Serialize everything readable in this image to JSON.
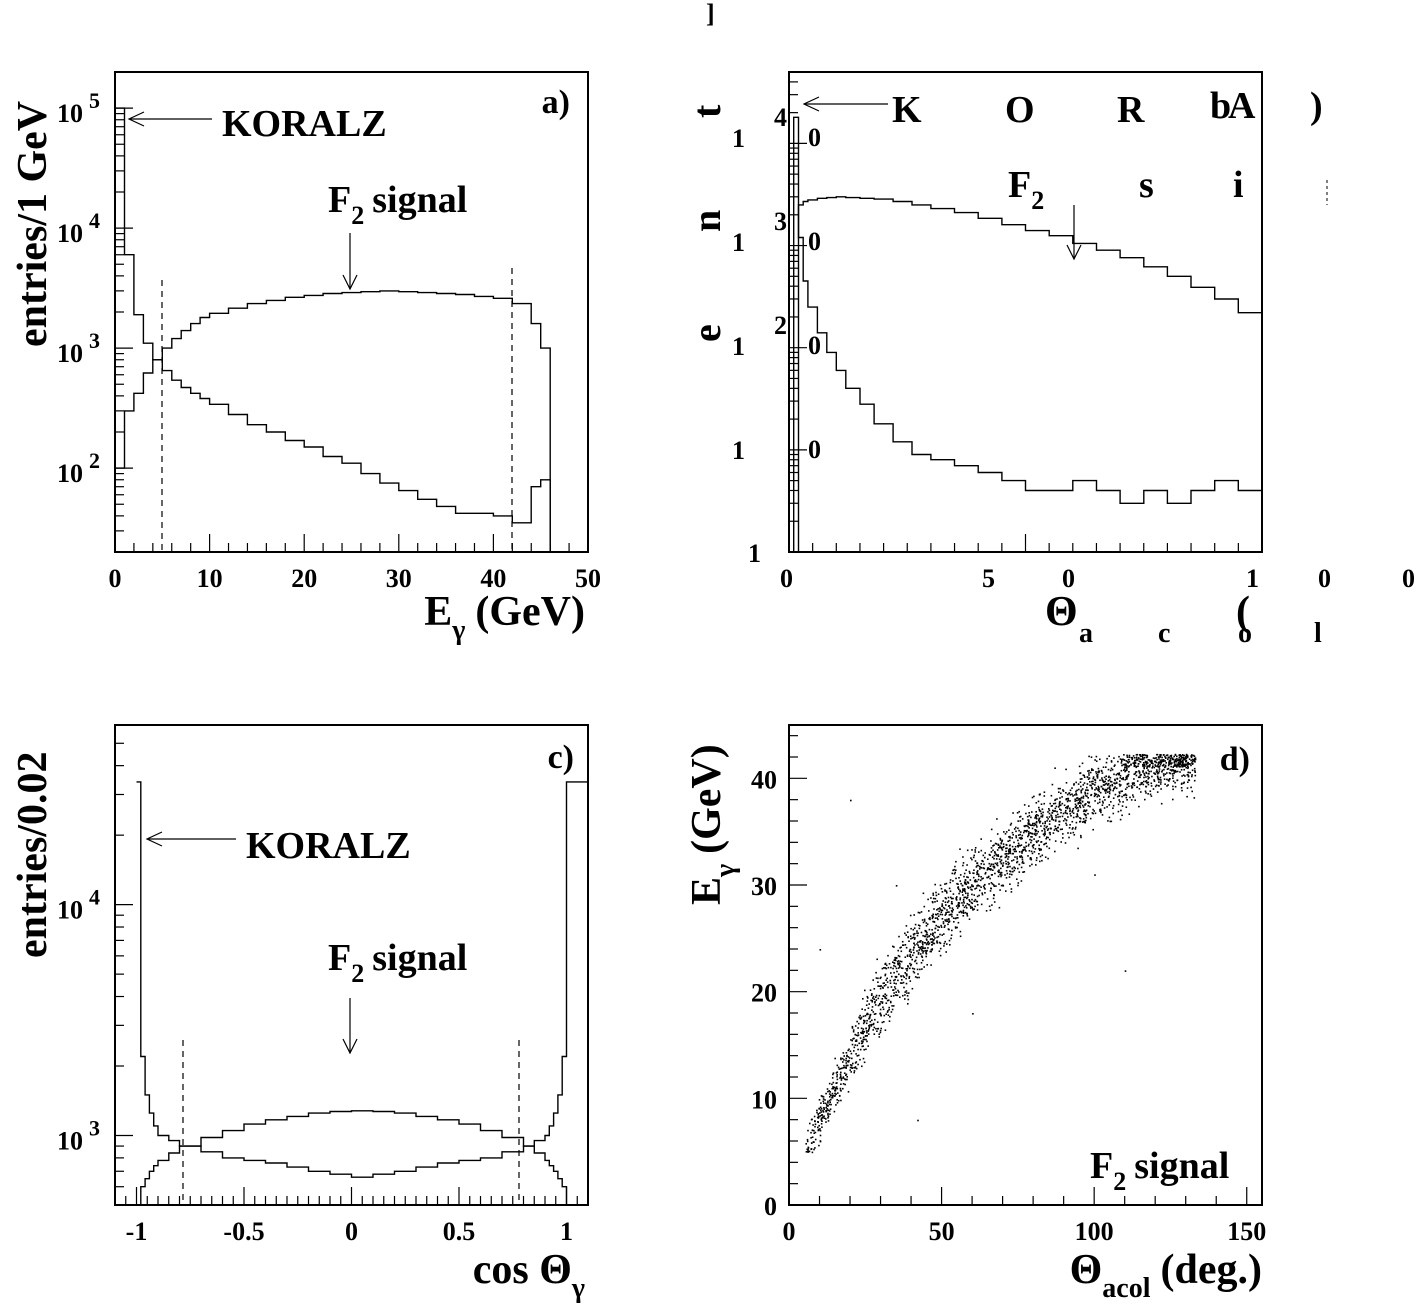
{
  "panels": {
    "a": {
      "panel_label": "a)",
      "ylabel": "entries/1 GeV",
      "xlabel_main": "E",
      "xlabel_sub": "γ",
      "xlabel_unit": "(GeV)",
      "xticks": [
        "0",
        "10",
        "20",
        "30",
        "40",
        "50"
      ],
      "yticks": [
        {
          "base": "10",
          "exp": "2"
        },
        {
          "base": "10",
          "exp": "3"
        },
        {
          "base": "10",
          "exp": "4"
        },
        {
          "base": "10",
          "exp": "5"
        }
      ],
      "koralz_label": "KORALZ",
      "signal_label_main": "F",
      "signal_label_sub": "2",
      "signal_label_rest": "signal"
    },
    "b": {
      "panel_label_1": "b",
      "panel_label_2": ")",
      "stray_A": "A",
      "ylabel_letters": [
        "e",
        "n",
        "t"
      ],
      "xlabel_theta": "Θ",
      "xlabel_letters": [
        "a",
        "c",
        "o",
        "l"
      ],
      "xlabel_paren": "(",
      "xticks": [
        "0",
        "5",
        "0",
        "1",
        "0",
        "0"
      ],
      "ytick_ones": [
        "1",
        "1",
        "1",
        "1",
        "1"
      ],
      "ytick_exps": [
        "4",
        "3",
        "2"
      ],
      "ytick_zeros": [
        "0",
        "0",
        "0",
        "0"
      ],
      "koralz_letters": [
        "K",
        "O",
        "R"
      ],
      "signal_label_main": "F",
      "signal_label_sub": "2",
      "signal_letters": [
        "s",
        "i"
      ],
      "top_mark": "]"
    },
    "c": {
      "panel_label": "c)",
      "ylabel": "entries/0.02",
      "xlabel_main": "cos Θ",
      "xlabel_sub": "γ",
      "xticks": [
        "-1",
        "-0.5",
        "0",
        "0.5",
        "1"
      ],
      "yticks": [
        {
          "base": "10",
          "exp": "3"
        },
        {
          "base": "10",
          "exp": "4"
        }
      ],
      "koralz_label": "KORALZ",
      "signal_label_main": "F",
      "signal_label_sub": "2",
      "signal_label_rest": "signal"
    },
    "d": {
      "panel_label": "d)",
      "ylabel_main": "E",
      "ylabel_sub": "γ",
      "ylabel_unit": "(GeV)",
      "xlabel_main": "Θ",
      "xlabel_sub": "acol",
      "xlabel_unit": "(deg.)",
      "xticks": [
        "0",
        "50",
        "100",
        "150"
      ],
      "yticks": [
        "0",
        "10",
        "20",
        "30",
        "40"
      ],
      "signal_label_main": "F",
      "signal_label_sub": "2",
      "signal_label_rest": "signal"
    }
  },
  "chart_data": [
    {
      "panel": "a",
      "type": "line",
      "log_y": true,
      "xlim": [
        0,
        50
      ],
      "ylim": [
        20,
        200000
      ],
      "cut_lines_x": [
        5,
        42
      ],
      "series": [
        {
          "name": "KORALZ",
          "x": [
            0,
            1,
            2,
            3,
            4,
            5,
            6,
            7,
            8,
            9,
            10,
            12,
            14,
            16,
            18,
            20,
            22,
            24,
            26,
            28,
            30,
            32,
            34,
            36,
            38,
            40,
            42,
            44,
            45,
            46
          ],
          "values": [
            100000,
            6000,
            1900,
            1100,
            800,
            650,
            540,
            470,
            420,
            380,
            340,
            280,
            230,
            200,
            170,
            150,
            125,
            110,
            90,
            75,
            65,
            55,
            48,
            42,
            42,
            40,
            35,
            70,
            80,
            20
          ]
        },
        {
          "name": "F2 signal",
          "x": [
            0,
            1,
            2,
            3,
            4,
            5,
            6,
            7,
            8,
            9,
            10,
            12,
            14,
            16,
            18,
            20,
            22,
            24,
            26,
            28,
            30,
            32,
            34,
            36,
            38,
            40,
            42,
            44,
            45,
            46
          ],
          "values": [
            100,
            300,
            420,
            620,
            800,
            1000,
            1200,
            1400,
            1600,
            1800,
            1950,
            2150,
            2350,
            2500,
            2650,
            2750,
            2850,
            2900,
            2950,
            3000,
            2950,
            2900,
            2850,
            2800,
            2700,
            2600,
            2350,
            1600,
            1000,
            20
          ]
        }
      ]
    },
    {
      "panel": "b",
      "type": "line",
      "log_y": true,
      "xlim": [
        0,
        100
      ],
      "ylim": [
        1,
        50000
      ],
      "series": [
        {
          "name": "KORALZ",
          "x": [
            0,
            1,
            2,
            3,
            4,
            6,
            8,
            10,
            12,
            15,
            18,
            22,
            26,
            30,
            35,
            40,
            45,
            50,
            55,
            60,
            65,
            70,
            75,
            80,
            85,
            90,
            95,
            100
          ],
          "values": [
            1,
            18000,
            1200,
            450,
            250,
            140,
            90,
            60,
            40,
            28,
            18,
            12,
            9,
            8,
            7,
            6,
            5,
            4,
            4,
            5,
            4,
            3,
            4,
            3,
            4,
            5,
            4,
            6
          ]
        },
        {
          "name": "F2 signal",
          "x": [
            0,
            1,
            2,
            3,
            4,
            6,
            8,
            10,
            12,
            15,
            18,
            22,
            26,
            30,
            35,
            40,
            45,
            50,
            55,
            60,
            65,
            70,
            75,
            80,
            85,
            90,
            95,
            100
          ],
          "values": [
            1,
            1,
            2500,
            2700,
            2800,
            2900,
            2950,
            3000,
            2950,
            2900,
            2850,
            2700,
            2500,
            2300,
            2100,
            1850,
            1600,
            1400,
            1250,
            1050,
            900,
            760,
            620,
            500,
            390,
            300,
            220,
            150
          ]
        }
      ]
    },
    {
      "panel": "c",
      "type": "line",
      "log_y": true,
      "xlim": [
        -1.1,
        1.1
      ],
      "ylim": [
        500,
        60000
      ],
      "cut_lines_x": [
        -0.78,
        0.78
      ],
      "series": [
        {
          "name": "KORALZ",
          "x": [
            -1.0,
            -0.98,
            -0.96,
            -0.94,
            -0.92,
            -0.9,
            -0.85,
            -0.8,
            -0.7,
            -0.6,
            -0.5,
            -0.4,
            -0.3,
            -0.2,
            -0.1,
            0,
            0.1,
            0.2,
            0.3,
            0.4,
            0.5,
            0.6,
            0.7,
            0.8,
            0.85,
            0.9,
            0.92,
            0.94,
            0.96,
            0.98,
            1.0
          ],
          "values": [
            34000,
            2200,
            1500,
            1250,
            1100,
            1000,
            950,
            900,
            850,
            800,
            780,
            760,
            730,
            700,
            680,
            660,
            680,
            700,
            730,
            760,
            780,
            800,
            850,
            900,
            950,
            1000,
            1100,
            1250,
            1500,
            2200,
            34000
          ]
        },
        {
          "name": "F2 signal",
          "x": [
            -1.0,
            -0.98,
            -0.96,
            -0.94,
            -0.92,
            -0.9,
            -0.85,
            -0.8,
            -0.7,
            -0.6,
            -0.5,
            -0.4,
            -0.3,
            -0.2,
            -0.1,
            0,
            0.1,
            0.2,
            0.3,
            0.4,
            0.5,
            0.6,
            0.7,
            0.8,
            0.85,
            0.9,
            0.92,
            0.94,
            0.96,
            0.98,
            1.0
          ],
          "values": [
            500,
            600,
            650,
            700,
            740,
            780,
            840,
            900,
            980,
            1050,
            1120,
            1170,
            1210,
            1250,
            1270,
            1280,
            1270,
            1250,
            1210,
            1170,
            1120,
            1050,
            980,
            900,
            840,
            780,
            740,
            700,
            650,
            600,
            500
          ]
        }
      ]
    },
    {
      "panel": "d",
      "type": "scatter",
      "xlim": [
        0,
        155
      ],
      "ylim": [
        0,
        45
      ],
      "trend_x": [
        5,
        10,
        15,
        20,
        25,
        30,
        40,
        50,
        60,
        70,
        80,
        90,
        100,
        110,
        120,
        130
      ],
      "trend_y": [
        5,
        8,
        11,
        14,
        17,
        19.5,
        23.5,
        27,
        30,
        32.5,
        35,
        37,
        39,
        40.5,
        41.5,
        42
      ],
      "series": [
        {
          "name": "F2 signal",
          "points": "dense band following trend_x / trend_y"
        }
      ]
    }
  ]
}
